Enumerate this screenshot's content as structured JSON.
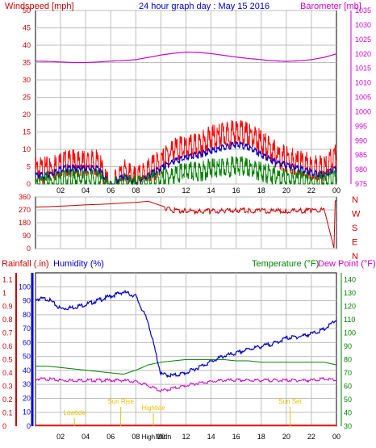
{
  "title": "24 hour graph day : May 15 2016",
  "colors": {
    "red": "#ff0000",
    "blue": "#0000cc",
    "green": "#008000",
    "magenta": "#cc00cc",
    "darkred": "#cc0000",
    "yellow": "#e8c000",
    "grid": "#bdbdbd"
  },
  "x_ticks": [
    "02",
    "04",
    "06",
    "08",
    "10",
    "12",
    "14",
    "16",
    "18",
    "20",
    "22",
    "00"
  ],
  "chart_data": [
    {
      "type": "line",
      "title": "24 hour graph day : May 15 2016",
      "left_axis_label": "Windspeed [mph]",
      "right_axis_label": "Barometer [mb]",
      "left_ticks": [
        "0",
        "5",
        "10",
        "15",
        "20",
        "25",
        "30",
        "35",
        "40",
        "45",
        "50"
      ],
      "right_ticks": [
        "975",
        "980",
        "985",
        "990",
        "995",
        "1000",
        "1005",
        "1010",
        "1015",
        "1020",
        "1025",
        "1030",
        "1035"
      ],
      "ylim_left": [
        0,
        50
      ],
      "ylim_right": [
        975,
        1035
      ],
      "x_hours": [
        0,
        1,
        2,
        3,
        4,
        5,
        6,
        7,
        8,
        9,
        10,
        11,
        12,
        13,
        14,
        15,
        16,
        17,
        18,
        19,
        20,
        21,
        22,
        23,
        24
      ],
      "series": [
        {
          "name": "Barometer",
          "axis": "right",
          "values": [
            1017.5,
            1017.4,
            1017.2,
            1017.0,
            1017.0,
            1017.2,
            1017.5,
            1017.7,
            1018.0,
            1018.8,
            1019.6,
            1020.2,
            1020.6,
            1020.5,
            1020.1,
            1019.5,
            1018.9,
            1018.4,
            1018.0,
            1017.6,
            1017.4,
            1017.6,
            1018.0,
            1018.8,
            1020.0
          ]
        },
        {
          "name": "Wind Gust",
          "axis": "left",
          "values": [
            6,
            6,
            8,
            8,
            8,
            8,
            0,
            6,
            3,
            6,
            8,
            12,
            12,
            13,
            15,
            16,
            17,
            16,
            14,
            11,
            9,
            8,
            7,
            6,
            10
          ]
        },
        {
          "name": "Wind Avg",
          "axis": "left",
          "values": [
            3,
            3,
            5,
            5,
            5,
            5,
            0,
            3,
            1,
            3,
            5,
            7,
            8,
            9,
            10,
            11,
            12,
            11,
            9,
            7,
            6,
            5,
            4,
            3,
            5
          ]
        },
        {
          "name": "Wind Speed",
          "axis": "left",
          "values": [
            1,
            2,
            3,
            3,
            3,
            3,
            0,
            2,
            1,
            2,
            3,
            4,
            5,
            5,
            6,
            6,
            7,
            6,
            5,
            4,
            3,
            3,
            2,
            2,
            3
          ]
        }
      ]
    },
    {
      "type": "line",
      "right_labels": [
        "N",
        "W",
        "S",
        "E",
        "N"
      ],
      "left_ticks": [
        "360",
        "270",
        "180",
        "90",
        "0"
      ],
      "ylim": [
        0,
        360
      ],
      "series": [
        {
          "name": "Wind Direction",
          "x_hours": [
            0,
            1,
            2,
            3,
            4,
            5,
            6,
            7,
            8,
            9,
            10,
            10.5,
            11,
            12,
            13,
            14,
            15,
            16,
            17,
            18,
            19,
            20,
            21,
            22,
            23,
            23.8,
            23.9,
            24
          ],
          "values": [
            290,
            292,
            296,
            300,
            305,
            308,
            312,
            318,
            322,
            330,
            300,
            285,
            275,
            272,
            270,
            270,
            272,
            275,
            274,
            273,
            272,
            270,
            272,
            274,
            280,
            5,
            330,
            340
          ]
        }
      ]
    },
    {
      "type": "line",
      "left_axis_label_1": "Rainfall (.in)",
      "left_axis_label_2": "Humidity (%)",
      "right_axis_label_1": "Temperature (°F)",
      "right_axis_label_2": "Dew Point (°F)",
      "rain_ticks": [
        "0",
        "0.1",
        "0.2",
        "0.3",
        "0.4",
        "0.5",
        "0.6",
        "0.7",
        "0.8",
        "0.9",
        "1",
        "1.1"
      ],
      "humidity_ticks": [
        "0",
        "10",
        "20",
        "30",
        "40",
        "50",
        "60",
        "70",
        "80",
        "90",
        "100"
      ],
      "temp_ticks": [
        "30",
        "40",
        "50",
        "60",
        "70",
        "80",
        "90",
        "100",
        "110",
        "120",
        "130",
        "140"
      ],
      "ylim_humidity": [
        0,
        110
      ],
      "ylim_temp": [
        30,
        145
      ],
      "x_hours": [
        0,
        1,
        2,
        3,
        4,
        5,
        6,
        7,
        8,
        9,
        10,
        11,
        12,
        13,
        14,
        15,
        16,
        17,
        18,
        19,
        20,
        21,
        22,
        23,
        24
      ],
      "series": [
        {
          "name": "Humidity",
          "axis": "humidity",
          "values": [
            92,
            92,
            85,
            86,
            88,
            91,
            94,
            97,
            94,
            75,
            38,
            37,
            39,
            43,
            47,
            51,
            53,
            56,
            58,
            60,
            64,
            65,
            67,
            70,
            77
          ]
        },
        {
          "name": "Temperature",
          "axis": "temp",
          "values": [
            75,
            75,
            74,
            73,
            72,
            71,
            70,
            69,
            72,
            76,
            78,
            79,
            80,
            80,
            80,
            80,
            79,
            79,
            78,
            78,
            78,
            78,
            78,
            78,
            76
          ]
        },
        {
          "name": "Dew Point",
          "axis": "temp",
          "values": [
            66,
            66,
            65,
            65,
            65,
            65,
            65,
            65,
            64,
            61,
            57,
            59,
            61,
            63,
            64,
            65,
            65,
            65,
            65,
            65,
            65,
            65,
            65,
            66,
            65
          ]
        },
        {
          "name": "Rainfall",
          "axis": "rain",
          "values": [
            0,
            0,
            0,
            0,
            0,
            0,
            0,
            0,
            0,
            0,
            0,
            0,
            0,
            0,
            0,
            0,
            0,
            0,
            0,
            0,
            0,
            0,
            0,
            0,
            0
          ]
        }
      ],
      "annotations": [
        {
          "label": "Lowtide",
          "hour": 3.1
        },
        {
          "label": "Sun Rise",
          "hour": 6.8
        },
        {
          "label": "Hightide",
          "hour": 9.4
        },
        {
          "label": "Sun Set",
          "hour": 20.3
        },
        {
          "label": "Midn",
          "hour": 10.2
        }
      ],
      "high_label": "High"
    }
  ]
}
